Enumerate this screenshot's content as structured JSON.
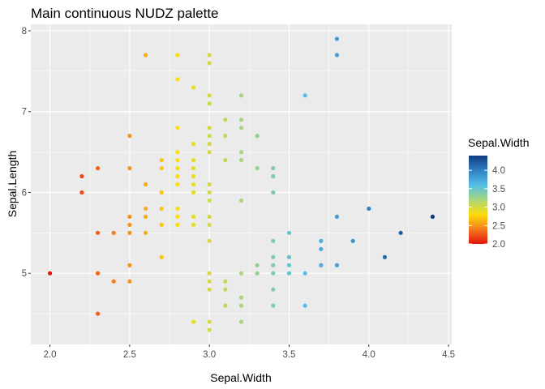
{
  "chart_data": {
    "type": "scatter",
    "title": "Main continuous NUDZ palette",
    "xlabel": "Sepal.Width",
    "ylabel": "Sepal.Length",
    "xlim": [
      1.88,
      4.52
    ],
    "ylim": [
      4.12,
      8.08
    ],
    "x_ticks": [
      2.0,
      2.5,
      3.0,
      3.5,
      4.0,
      4.5
    ],
    "x_tick_labels": [
      "2.0",
      "2.5",
      "3.0",
      "3.5",
      "4.0",
      "4.5"
    ],
    "y_ticks": [
      5,
      6,
      7,
      8
    ],
    "y_tick_labels": [
      "5",
      "6",
      "7",
      "8"
    ],
    "grid": true,
    "legend": {
      "title": "Sepal.Width",
      "placement": "right",
      "range": [
        2.0,
        4.4
      ],
      "ticks": [
        2.0,
        2.5,
        3.0,
        3.5,
        4.0
      ],
      "tick_labels": [
        "2.0",
        "2.5",
        "3.0",
        "3.5",
        "4.0"
      ]
    },
    "color_stops": [
      {
        "value": 2.0,
        "color": "#e3120b"
      },
      {
        "value": 2.4,
        "color": "#f47c20"
      },
      {
        "value": 2.8,
        "color": "#fcdc0a"
      },
      {
        "value": 3.2,
        "color": "#a8d67a"
      },
      {
        "value": 3.6,
        "color": "#55bde8"
      },
      {
        "value": 4.0,
        "color": "#2f7fc1"
      },
      {
        "value": 4.4,
        "color": "#103c80"
      }
    ],
    "panel_background": "#ebebeb",
    "grid_color": "#ffffff",
    "points": [
      [
        2.0,
        5.0
      ],
      [
        2.2,
        6.0
      ],
      [
        2.2,
        6.2
      ],
      [
        2.3,
        4.5
      ],
      [
        2.3,
        5.0
      ],
      [
        2.3,
        5.5
      ],
      [
        2.3,
        6.3
      ],
      [
        2.4,
        4.9
      ],
      [
        2.4,
        5.5
      ],
      [
        2.5,
        4.9
      ],
      [
        2.5,
        5.1
      ],
      [
        2.5,
        5.5
      ],
      [
        2.5,
        5.6
      ],
      [
        2.5,
        5.7
      ],
      [
        2.5,
        6.3
      ],
      [
        2.5,
        6.7
      ],
      [
        2.6,
        5.5
      ],
      [
        2.6,
        5.7
      ],
      [
        2.6,
        5.8
      ],
      [
        2.6,
        6.1
      ],
      [
        2.6,
        7.7
      ],
      [
        2.7,
        5.2
      ],
      [
        2.7,
        5.6
      ],
      [
        2.7,
        5.8
      ],
      [
        2.7,
        6.0
      ],
      [
        2.7,
        6.3
      ],
      [
        2.7,
        6.4
      ],
      [
        2.8,
        5.6
      ],
      [
        2.8,
        5.7
      ],
      [
        2.8,
        5.8
      ],
      [
        2.8,
        6.1
      ],
      [
        2.8,
        6.2
      ],
      [
        2.8,
        6.3
      ],
      [
        2.8,
        6.4
      ],
      [
        2.8,
        6.5
      ],
      [
        2.8,
        6.8
      ],
      [
        2.8,
        7.4
      ],
      [
        2.8,
        7.7
      ],
      [
        2.9,
        4.4
      ],
      [
        2.9,
        5.6
      ],
      [
        2.9,
        5.7
      ],
      [
        2.9,
        6.0
      ],
      [
        2.9,
        6.1
      ],
      [
        2.9,
        6.2
      ],
      [
        2.9,
        6.3
      ],
      [
        2.9,
        6.4
      ],
      [
        2.9,
        6.6
      ],
      [
        2.9,
        7.3
      ],
      [
        3.0,
        4.3
      ],
      [
        3.0,
        4.4
      ],
      [
        3.0,
        4.8
      ],
      [
        3.0,
        4.9
      ],
      [
        3.0,
        5.0
      ],
      [
        3.0,
        5.4
      ],
      [
        3.0,
        5.6
      ],
      [
        3.0,
        5.7
      ],
      [
        3.0,
        5.9
      ],
      [
        3.0,
        6.0
      ],
      [
        3.0,
        6.1
      ],
      [
        3.0,
        6.5
      ],
      [
        3.0,
        6.6
      ],
      [
        3.0,
        6.7
      ],
      [
        3.0,
        6.8
      ],
      [
        3.0,
        7.1
      ],
      [
        3.0,
        7.2
      ],
      [
        3.0,
        7.6
      ],
      [
        3.0,
        7.7
      ],
      [
        3.1,
        4.6
      ],
      [
        3.1,
        4.8
      ],
      [
        3.1,
        4.9
      ],
      [
        3.1,
        6.4
      ],
      [
        3.1,
        6.7
      ],
      [
        3.1,
        6.9
      ],
      [
        3.2,
        4.4
      ],
      [
        3.2,
        4.6
      ],
      [
        3.2,
        4.7
      ],
      [
        3.2,
        5.0
      ],
      [
        3.2,
        5.9
      ],
      [
        3.2,
        6.4
      ],
      [
        3.2,
        6.5
      ],
      [
        3.2,
        6.8
      ],
      [
        3.2,
        6.9
      ],
      [
        3.2,
        7.2
      ],
      [
        3.3,
        5.0
      ],
      [
        3.3,
        5.1
      ],
      [
        3.3,
        6.3
      ],
      [
        3.3,
        6.7
      ],
      [
        3.4,
        4.6
      ],
      [
        3.4,
        4.8
      ],
      [
        3.4,
        5.0
      ],
      [
        3.4,
        5.1
      ],
      [
        3.4,
        5.2
      ],
      [
        3.4,
        5.4
      ],
      [
        3.4,
        6.0
      ],
      [
        3.4,
        6.2
      ],
      [
        3.4,
        6.3
      ],
      [
        3.5,
        5.0
      ],
      [
        3.5,
        5.1
      ],
      [
        3.5,
        5.2
      ],
      [
        3.5,
        5.5
      ],
      [
        3.6,
        4.6
      ],
      [
        3.6,
        5.0
      ],
      [
        3.6,
        7.2
      ],
      [
        3.7,
        5.1
      ],
      [
        3.7,
        5.3
      ],
      [
        3.7,
        5.4
      ],
      [
        3.8,
        5.1
      ],
      [
        3.8,
        5.7
      ],
      [
        3.8,
        7.7
      ],
      [
        3.8,
        7.9
      ],
      [
        3.9,
        5.4
      ],
      [
        4.0,
        5.8
      ],
      [
        4.1,
        5.2
      ],
      [
        4.2,
        5.5
      ],
      [
        4.4,
        5.7
      ]
    ]
  }
}
